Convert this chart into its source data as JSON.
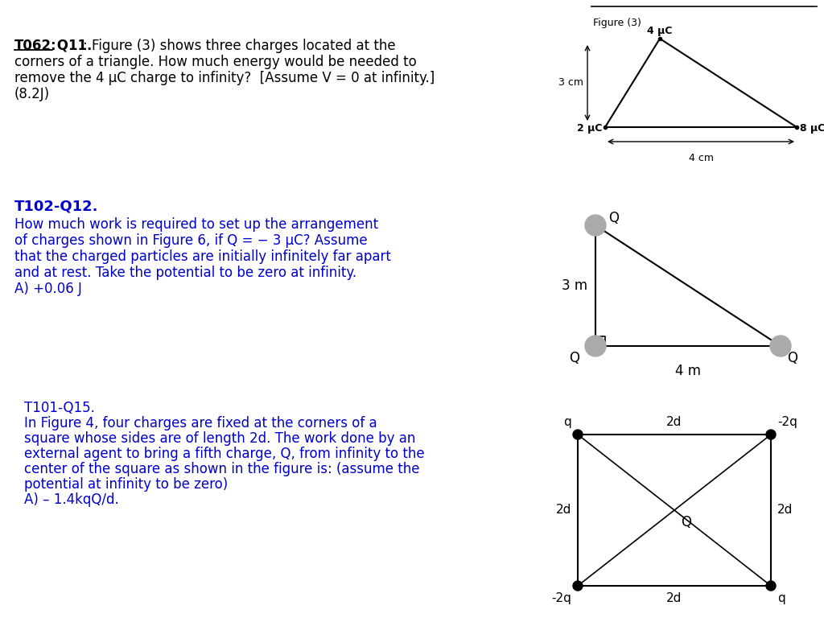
{
  "bg_color": "#ffffff",
  "blue_color": "#0000cd",
  "black": "#000000",
  "gray": "#888888",
  "q1_bold1": "T062:",
  "q1_bold2": " Q11.",
  "q1_rest": ": Figure (3) shows three charges located at the",
  "q1_lines": [
    "corners of a triangle. How much energy would be needed to",
    "remove the 4 μC charge to infinity?  [Assume V = 0 at infinity.]",
    "(8.2J)"
  ],
  "q2_title": "T102-Q12.",
  "q2_lines": [
    "How much work is required to set up the arrangement",
    "of charges shown in Figure 6, if Q = − 3 μC? Assume",
    "that the charged particles are initially infinitely far apart",
    "and at rest. Take the potential to be zero at infinity.",
    "A) +0.06 J"
  ],
  "q3_title": "T101-Q15.",
  "q3_lines": [
    "In Figure 4, four charges are fixed at the corners of a",
    "square whose sides are of length 2d. The work done by an",
    "external agent to bring a fifth charge, Q, from infinity to the",
    "center of the square as shown in the figure is: (assume the",
    "potential at infinity to be zero)",
    "A) – 1.4kqQ/d."
  ],
  "fig1_title": "Figure (3)",
  "fig1_label_top": "4 μC",
  "fig1_label_bl": "2 μC",
  "fig1_label_br": "8 μC",
  "fig1_side": "3 cm",
  "fig1_base": "4 cm",
  "fig2_side": "3 m",
  "fig2_base": "4 m",
  "fig3_tl": "q",
  "fig3_tr": "-2q",
  "fig3_bl": "-2q",
  "fig3_br": "q",
  "fig3_top": "2d",
  "fig3_bot": "2d",
  "fig3_left": "2d",
  "fig3_right": "2d",
  "fig3_center": "Q"
}
